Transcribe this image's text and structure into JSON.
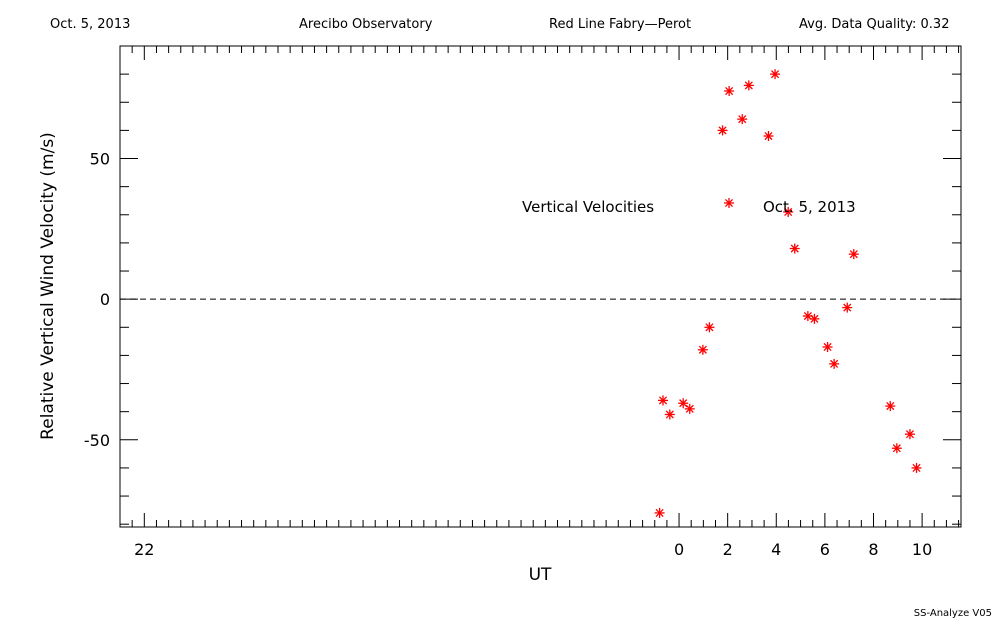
{
  "header": {
    "date": "Oct. 5, 2013",
    "site": "Arecibo Observatory",
    "instrument": "Red Line Fabry—Perot",
    "quality": "Avg. Data Quality: 0.32"
  },
  "footer": "SS-Analyze V05",
  "chart_data": {
    "type": "scatter",
    "title": "",
    "xlabel": "UT",
    "ylabel": "Relative Vertical Wind Velocity (m/s)",
    "xlim": [
      -23,
      11.6
    ],
    "ylim": [
      -81,
      90
    ],
    "xticks": [
      -22,
      0,
      2,
      4,
      6,
      8,
      10
    ],
    "xtick_labels": [
      "22",
      "0",
      "2",
      "4",
      "6",
      "8",
      "10"
    ],
    "yticks": [
      -50,
      0,
      50
    ],
    "ytick_labels": [
      "-50",
      "0",
      "50"
    ],
    "reference_line": 0,
    "marker": "asterisk",
    "marker_color": "#ff0000",
    "legend": {
      "label": "Vertical Velocities",
      "entry": "Oct. 5, 2013",
      "placement": "upper right"
    },
    "series": [
      {
        "points": [
          [
            -0.8,
            -76
          ],
          [
            -0.66,
            -36
          ],
          [
            -0.38,
            -41
          ],
          [
            0.17,
            -37
          ],
          [
            0.44,
            -39
          ],
          [
            0.98,
            -18
          ],
          [
            1.25,
            -10
          ],
          [
            1.79,
            60
          ],
          [
            2.06,
            74
          ],
          [
            2.6,
            64
          ],
          [
            2.87,
            76
          ],
          [
            3.68,
            58
          ],
          [
            3.95,
            80
          ],
          [
            4.49,
            31
          ],
          [
            4.76,
            18
          ],
          [
            5.3,
            -6
          ],
          [
            5.57,
            -7
          ],
          [
            6.11,
            -17
          ],
          [
            6.38,
            -23
          ],
          [
            6.92,
            -3
          ],
          [
            7.19,
            16
          ],
          [
            8.69,
            -38
          ],
          [
            8.96,
            -53
          ],
          [
            9.5,
            -48
          ],
          [
            9.77,
            -60
          ]
        ]
      }
    ]
  }
}
